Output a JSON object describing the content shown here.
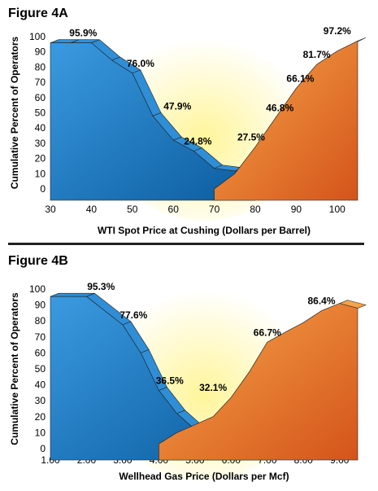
{
  "figures": {
    "a": {
      "title": "Figure 4A"
    },
    "b": {
      "title": "Figure 4B"
    }
  },
  "colors": {
    "blue": "#1b7dc8",
    "blue_dark": "#0b5c9e",
    "orange": "#f08a2a",
    "orange_dark": "#d4541a",
    "glow": "#fff59a"
  },
  "chart_data": [
    {
      "type": "area",
      "title": "Figure 4A",
      "xlabel": "WTI Spot Price at Cushing (Dollars per Barrel)",
      "ylabel": "Cumulative Percent of Operators",
      "xlim": [
        30,
        105
      ],
      "ylim": [
        0,
        100
      ],
      "x_ticks": [
        "30",
        "40",
        "50",
        "60",
        "70",
        "80",
        "90",
        "100"
      ],
      "y_ticks": [
        "0",
        "10",
        "20",
        "30",
        "40",
        "50",
        "60",
        "70",
        "80",
        "90",
        "100"
      ],
      "series": [
        {
          "color": "blue",
          "x": [
            30,
            35,
            40,
            45,
            50,
            55,
            60,
            65,
            70,
            75,
            80
          ],
          "values": [
            95.9,
            95.9,
            95.9,
            84.5,
            76.0,
            47.9,
            32.0,
            24.8,
            13.5,
            11.8,
            8.0
          ]
        },
        {
          "color": "orange",
          "x": [
            70,
            75,
            80,
            85,
            90,
            95,
            100,
            105
          ],
          "values": [
            0,
            10,
            27.5,
            46.8,
            66.1,
            81.7,
            90.5,
            97.2
          ]
        }
      ],
      "annotations": [
        {
          "text": "95.9%",
          "x": 38,
          "y": 95.9
        },
        {
          "text": "76.0%",
          "x": 52,
          "y": 76.0
        },
        {
          "text": "47.9%",
          "x": 61,
          "y": 47.9
        },
        {
          "text": "24.8%",
          "x": 66,
          "y": 24.8
        },
        {
          "text": "27.5%",
          "x": 79,
          "y": 27.5
        },
        {
          "text": "46.8%",
          "x": 86,
          "y": 46.8
        },
        {
          "text": "66.1%",
          "x": 91,
          "y": 66.1
        },
        {
          "text": "81.7%",
          "x": 95,
          "y": 81.7
        },
        {
          "text": "97.2%",
          "x": 100,
          "y": 97.2
        }
      ]
    },
    {
      "type": "area",
      "title": "Figure 4B",
      "xlabel": "Wellhead Gas Price (Dollars per Mcf)",
      "ylabel": "Cumulative Percent of Operators",
      "xlim": [
        1,
        9.5
      ],
      "ylim": [
        0,
        100
      ],
      "x_ticks": [
        "1.00",
        "2.00",
        "3.00",
        "4.00",
        "5.00",
        "6.00",
        "7.00",
        "8.00",
        "9.00"
      ],
      "y_ticks": [
        "0",
        "10",
        "20",
        "30",
        "40",
        "50",
        "60",
        "70",
        "80",
        "90",
        "100"
      ],
      "series": [
        {
          "color": "blue",
          "x": [
            1,
            2,
            3,
            3.5,
            4,
            4.5,
            5,
            5.5,
            6,
            6.5,
            7
          ],
          "values": [
            95.3,
            95.3,
            77.6,
            60.0,
            36.5,
            22.0,
            12.0,
            6.0,
            4.0,
            3.0,
            2.0
          ]
        },
        {
          "color": "orange",
          "x": [
            4,
            4.5,
            5,
            5.5,
            6,
            6.5,
            7,
            7.5,
            8,
            8.5,
            9,
            9.5
          ],
          "values": [
            3.0,
            10.0,
            15.0,
            20.0,
            32.1,
            48.0,
            66.7,
            73.0,
            79.0,
            86.4,
            91.0,
            88.0
          ]
        }
      ],
      "annotations": [
        {
          "text": "95.3%",
          "x": 2.4,
          "y": 95.3
        },
        {
          "text": "77.6%",
          "x": 3.3,
          "y": 77.6
        },
        {
          "text": "36.5%",
          "x": 4.3,
          "y": 36.5
        },
        {
          "text": "32.1%",
          "x": 5.5,
          "y": 32.1
        },
        {
          "text": "66.7%",
          "x": 7.0,
          "y": 66.7
        },
        {
          "text": "86.4%",
          "x": 8.5,
          "y": 86.4
        }
      ]
    }
  ]
}
